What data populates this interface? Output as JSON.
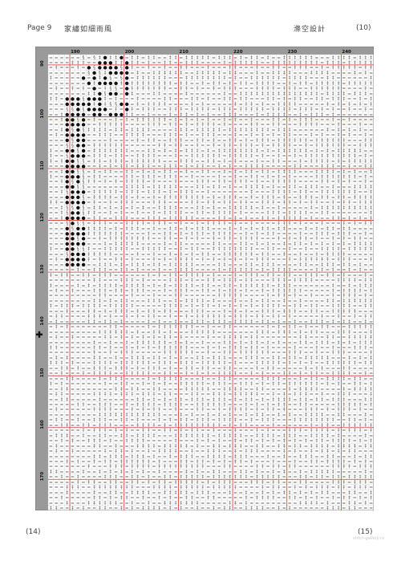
{
  "header": {
    "page_label": "Page 9",
    "title": "家繡如細雨風",
    "designer": "滌空設計",
    "right_number": "(10)"
  },
  "pattern": {
    "column_labels": [
      "190",
      "200",
      "210",
      "220",
      "230",
      "240"
    ],
    "row_labels": [
      "90",
      "100",
      "110",
      "120",
      "130",
      "140",
      "150",
      "160",
      "170"
    ],
    "symbols": {
      "dense": "●",
      "medium": "§",
      "light": "=",
      "empty": "‡"
    },
    "center_marker_icon": "cross-marker-icon",
    "grid_color": "#bfbfbf",
    "major_grid_color": "#e03030",
    "ruler_color": "#9a9a9a"
  },
  "footer": {
    "left_number": "(14)",
    "right_number": "(15)",
    "watermark": "stitch-gallery.ru"
  }
}
